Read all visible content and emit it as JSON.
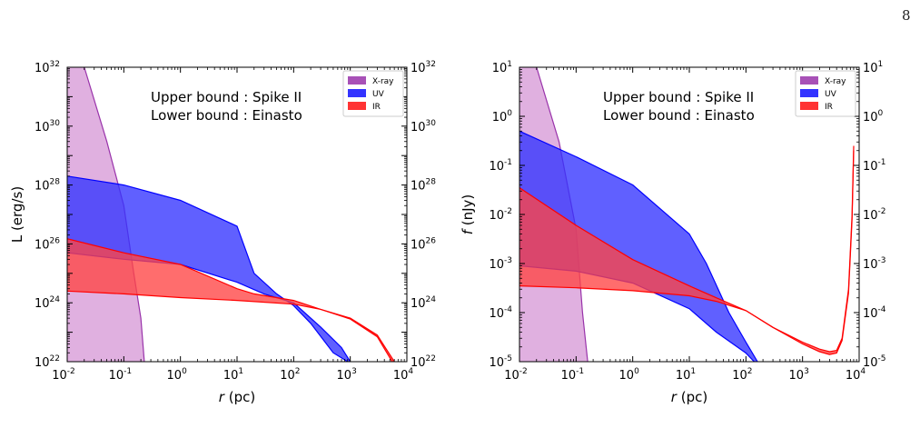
{
  "page_number": "8",
  "chart_data": [
    {
      "type": "area",
      "xscale": "log",
      "yscale": "log",
      "xlabel": "r (pc)",
      "xlabel_italic": "r",
      "xlabel_unit": " (pc)",
      "ylabel": "L (erg/s)",
      "xlim": [
        0.01,
        10000
      ],
      "ylim": [
        1e+22,
        1e+32
      ],
      "xticks": [
        {
          "exp": "-2"
        },
        {
          "exp": "-1"
        },
        {
          "exp": "0"
        },
        {
          "exp": "1"
        },
        {
          "exp": "2"
        },
        {
          "exp": "3"
        },
        {
          "exp": "4"
        }
      ],
      "yticks": [
        {
          "exp": "22"
        },
        {
          "exp": "24"
        },
        {
          "exp": "26"
        },
        {
          "exp": "28"
        },
        {
          "exp": "30"
        },
        {
          "exp": "32"
        }
      ],
      "annotation": [
        "Upper bound :  Spike II",
        "Lower bound :  Einasto"
      ],
      "legend_position": "top-right",
      "series": [
        {
          "name": "X-ray",
          "color": "#9933aa",
          "fill": "#e0b0e0",
          "upper": [
            [
              0.01,
              3e+33
            ],
            [
              0.02,
              1e+32
            ],
            [
              0.05,
              3e+29
            ],
            [
              0.1,
              2e+27
            ],
            [
              0.15,
              1e+25
            ],
            [
              0.2,
              3e+23
            ],
            [
              0.23,
              1e+22
            ]
          ],
          "lower": [
            [
              0.01,
              1e+22
            ],
            [
              0.23,
              1e+22
            ]
          ]
        },
        {
          "name": "UV",
          "color": "#0000ff",
          "fill": "#3333ff",
          "upper": [
            [
              0.01,
              2e+28
            ],
            [
              0.1,
              1e+28
            ],
            [
              1,
              3e+27
            ],
            [
              10,
              4e+26
            ],
            [
              20,
              1e+25
            ],
            [
              50,
              2e+24
            ],
            [
              100,
              8e+23
            ],
            [
              200,
              2e+23
            ],
            [
              500,
              2e+22
            ],
            [
              900,
              1e+22
            ]
          ],
          "lower": [
            [
              0.01,
              5e+25
            ],
            [
              0.1,
              3e+25
            ],
            [
              1,
              2e+25
            ],
            [
              10,
              5e+24
            ],
            [
              30,
              2e+24
            ],
            [
              100,
              1e+24
            ],
            [
              300,
              1.5e+23
            ],
            [
              700,
              3e+22
            ],
            [
              1000,
              1e+22
            ]
          ]
        },
        {
          "name": "IR",
          "color": "#ff0000",
          "fill": "#ff4444",
          "upper": [
            [
              0.01,
              1.5e+26
            ],
            [
              0.1,
              5e+25
            ],
            [
              1,
              2e+25
            ],
            [
              10,
              3e+24
            ],
            [
              20,
              2e+24
            ],
            [
              100,
              1.2e+24
            ],
            [
              300,
              6e+23
            ],
            [
              1000,
              3e+23
            ],
            [
              3000,
              8e+22
            ],
            [
              6000,
              1e+22
            ]
          ],
          "lower": [
            [
              0.01,
              2.5e+24
            ],
            [
              0.1,
              2e+24
            ],
            [
              1,
              1.5e+24
            ],
            [
              10,
              1.2e+24
            ],
            [
              100,
              9e+23
            ],
            [
              300,
              6e+23
            ],
            [
              1000,
              2.8e+23
            ],
            [
              3000,
              7e+22
            ],
            [
              5500,
              1e+22
            ]
          ]
        }
      ]
    },
    {
      "type": "area",
      "xscale": "log",
      "yscale": "log",
      "xlabel": "r (pc)",
      "xlabel_italic": "r",
      "xlabel_unit": " (pc)",
      "ylabel": "f (nJy)",
      "ylabel_italic": "f",
      "ylabel_unit": " (nJy)",
      "xlim": [
        0.01,
        10000
      ],
      "ylim": [
        1e-05,
        10
      ],
      "xticks": [
        {
          "exp": "-2"
        },
        {
          "exp": "-1"
        },
        {
          "exp": "0"
        },
        {
          "exp": "1"
        },
        {
          "exp": "2"
        },
        {
          "exp": "3"
        },
        {
          "exp": "4"
        }
      ],
      "yticks": [
        {
          "exp": "-5"
        },
        {
          "exp": "-4"
        },
        {
          "exp": "-3"
        },
        {
          "exp": "-2"
        },
        {
          "exp": "-1"
        },
        {
          "exp": "0"
        },
        {
          "exp": "1"
        }
      ],
      "annotation": [
        "Upper bound :  Spike II",
        "Lower bound :  Einasto"
      ],
      "legend_position": "top-right",
      "series": [
        {
          "name": "X-ray",
          "color": "#9933aa",
          "fill": "#e0b0e0",
          "upper": [
            [
              0.01,
              100
            ],
            [
              0.02,
              10
            ],
            [
              0.05,
              0.3
            ],
            [
              0.1,
              0.005
            ],
            [
              0.13,
              0.0001
            ],
            [
              0.16,
              1e-05
            ]
          ],
          "lower": [
            [
              0.01,
              1e-05
            ],
            [
              0.16,
              1e-05
            ]
          ]
        },
        {
          "name": "UV",
          "color": "#0000ff",
          "fill": "#3333ff",
          "upper": [
            [
              0.01,
              0.5
            ],
            [
              0.1,
              0.15
            ],
            [
              1,
              0.04
            ],
            [
              10,
              0.004
            ],
            [
              20,
              0.001
            ],
            [
              50,
              0.0001
            ],
            [
              100,
              2.5e-05
            ],
            [
              160,
              1e-05
            ]
          ],
          "lower": [
            [
              0.01,
              0.0009
            ],
            [
              0.1,
              0.0007
            ],
            [
              1,
              0.0004
            ],
            [
              10,
              0.00012
            ],
            [
              30,
              4e-05
            ],
            [
              100,
              1.5e-05
            ],
            [
              140,
              1e-05
            ]
          ]
        },
        {
          "name": "IR",
          "color": "#ff0000",
          "fill": "#ff4444",
          "upper": [
            [
              0.01,
              0.035
            ],
            [
              0.1,
              0.006
            ],
            [
              1,
              0.0012
            ],
            [
              10,
              0.00035
            ],
            [
              30,
              0.0002
            ],
            [
              100,
              0.00011
            ],
            [
              300,
              5e-05
            ],
            [
              1000,
              2.5e-05
            ],
            [
              2000,
              1.8e-05
            ],
            [
              3000,
              1.6e-05
            ],
            [
              4000,
              1.7e-05
            ],
            [
              5000,
              3e-05
            ],
            [
              6500,
              0.0003
            ],
            [
              7500,
              0.01
            ],
            [
              8000,
              0.25
            ]
          ],
          "lower": [
            [
              0.01,
              0.00035
            ],
            [
              0.1,
              0.00032
            ],
            [
              1,
              0.00028
            ],
            [
              10,
              0.00022
            ],
            [
              30,
              0.00017
            ],
            [
              100,
              0.00011
            ],
            [
              300,
              5e-05
            ],
            [
              1000,
              2.3e-05
            ],
            [
              2000,
              1.6e-05
            ],
            [
              3000,
              1.4e-05
            ],
            [
              4000,
              1.5e-05
            ],
            [
              5000,
              2.7e-05
            ],
            [
              6500,
              0.00025
            ],
            [
              7500,
              0.008
            ],
            [
              8000,
              0.2
            ]
          ]
        }
      ]
    }
  ]
}
